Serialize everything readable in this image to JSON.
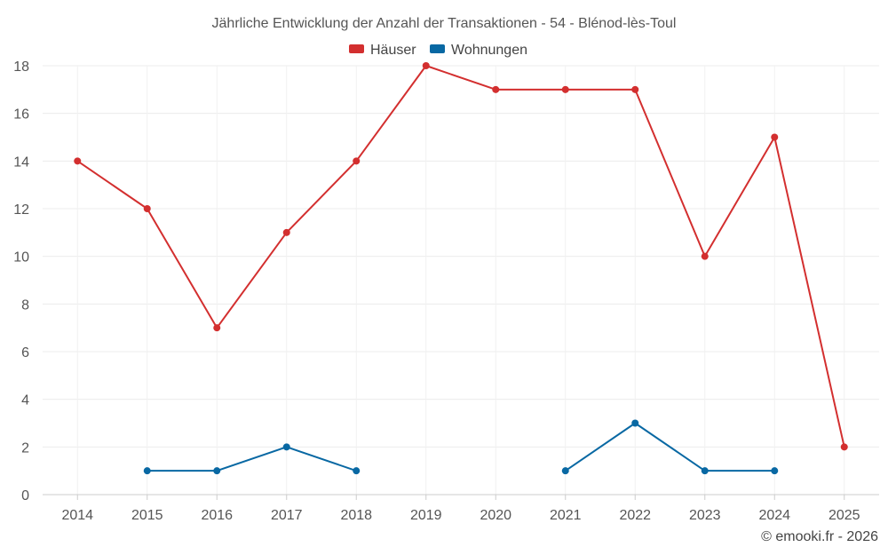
{
  "chart_data": {
    "type": "line",
    "title": "Jährliche Entwicklung der Anzahl der Transaktionen - 54 - Blénod-lès-Toul",
    "x": [
      "2014",
      "2015",
      "2016",
      "2017",
      "2018",
      "2019",
      "2020",
      "2021",
      "2022",
      "2023",
      "2024",
      "2025"
    ],
    "ylim": [
      0,
      18
    ],
    "yticks": [
      0,
      2,
      4,
      6,
      8,
      10,
      12,
      14,
      16,
      18
    ],
    "grid": true,
    "legend_position": "top-center",
    "series": [
      {
        "name": "Häuser",
        "color": "#d32f2f",
        "values": [
          14,
          12,
          7,
          11,
          14,
          18,
          17,
          17,
          17,
          10,
          15,
          2
        ]
      },
      {
        "name": "Wohnungen",
        "color": "#0868a3",
        "values": [
          null,
          1,
          1,
          2,
          1,
          null,
          null,
          1,
          3,
          1,
          1,
          null
        ]
      }
    ]
  },
  "credit": "© emooki.fr - 2026"
}
